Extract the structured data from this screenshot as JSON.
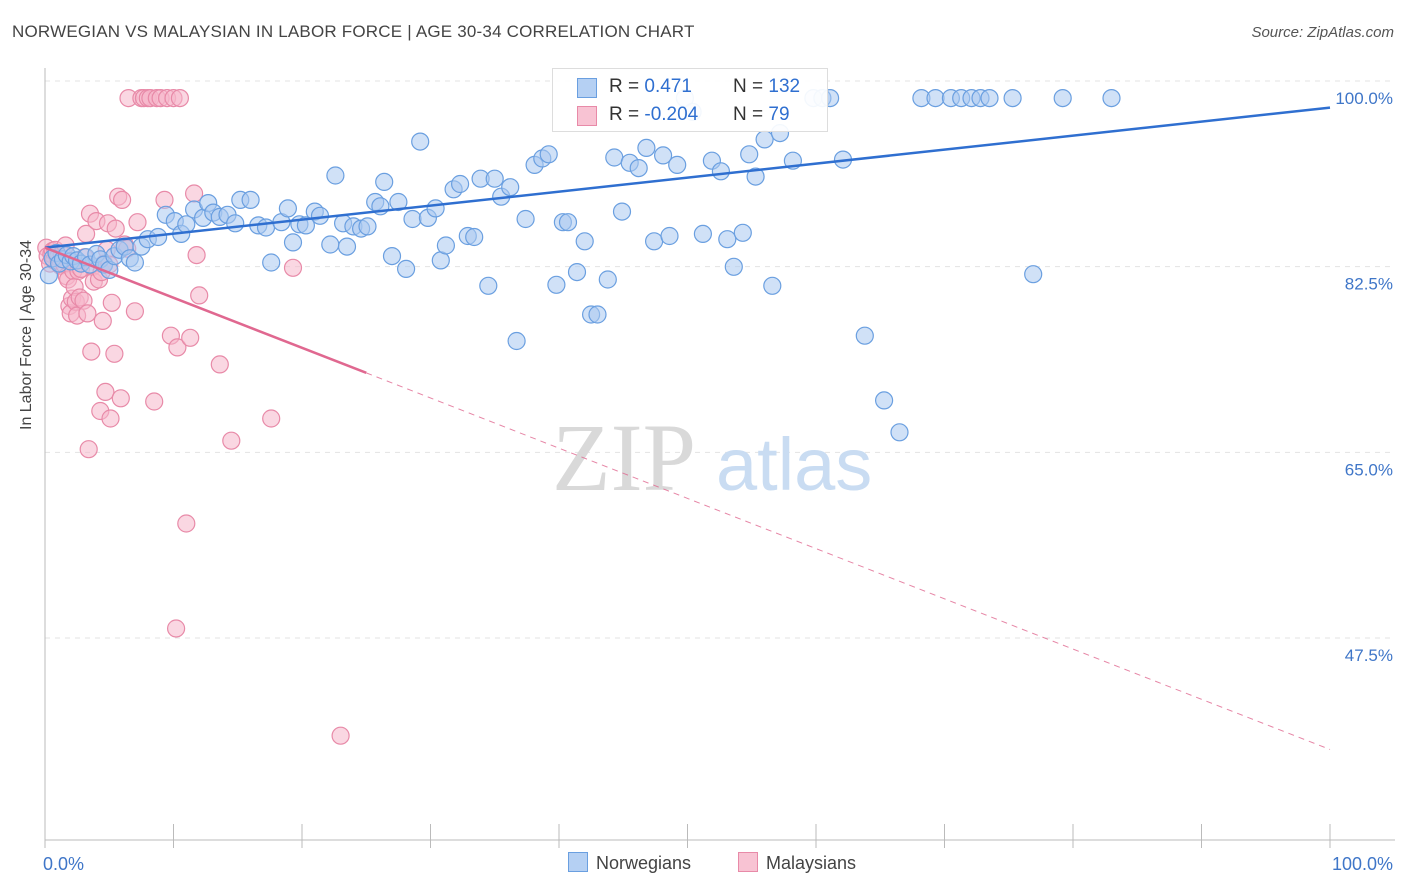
{
  "title": "NORWEGIAN VS MALAYSIAN IN LABOR FORCE | AGE 30-34 CORRELATION CHART",
  "source": "Source: ZipAtlas.com",
  "watermark": {
    "zip": "ZIP",
    "atlas": "atlas"
  },
  "legend": {
    "rows": [
      {
        "r_label": "R = ",
        "r_value": " 0.471",
        "n_label": "N = ",
        "n_value": "132"
      },
      {
        "r_label": "R = ",
        "r_value": "-0.204",
        "n_label": "N = ",
        "n_value": " 79"
      }
    ]
  },
  "colors": {
    "norwegian_fill": "#a9c8f0",
    "norwegian_stroke": "#6a9fe0",
    "norwegian_line": "#2f6fd0",
    "malaysian_fill": "#f6b6cb",
    "malaysian_stroke": "#e88aa8",
    "malaysian_line": "#e06890",
    "axis_label": "#3f76c8",
    "grid": "#e3e3e3"
  },
  "chart_data": {
    "type": "scatter",
    "title": "NORWEGIAN VS MALAYSIAN IN LABOR FORCE | AGE 30-34 CORRELATION CHART",
    "xlabel": "",
    "ylabel": "In Labor Force | Age 30-34",
    "xlim": [
      0,
      100
    ],
    "ylim": [
      33,
      101.5
    ],
    "x_tick_labels": [
      "0.0%",
      "100.0%"
    ],
    "y_ticks": [
      100,
      82.5,
      65,
      47.5
    ],
    "y_tick_labels": [
      "100.0%",
      "82.5%",
      "65.0%",
      "47.5%"
    ],
    "grid": true,
    "legend_position": "bottom",
    "series": [
      {
        "name": "Norwegians",
        "r": 0.471,
        "n": 132,
        "trend": {
          "x": [
            0,
            100
          ],
          "y": [
            85.8,
            99.0
          ],
          "style": "solid"
        },
        "points": [
          [
            0.3,
            83.2
          ],
          [
            0.6,
            84.8
          ],
          [
            0.9,
            85.3
          ],
          [
            1.1,
            84.3
          ],
          [
            1.4,
            84.7
          ],
          [
            1.7,
            85.1
          ],
          [
            2.0,
            84.5
          ],
          [
            2.2,
            85.0
          ],
          [
            2.5,
            84.6
          ],
          [
            2.8,
            84.3
          ],
          [
            3.2,
            84.9
          ],
          [
            3.5,
            84.2
          ],
          [
            4.0,
            85.2
          ],
          [
            4.3,
            84.7
          ],
          [
            4.6,
            84.2
          ],
          [
            5.0,
            83.7
          ],
          [
            5.4,
            85.0
          ],
          [
            5.8,
            85.6
          ],
          [
            6.2,
            85.9
          ],
          [
            6.6,
            84.8
          ],
          [
            7.0,
            84.4
          ],
          [
            7.5,
            85.9
          ],
          [
            8.0,
            86.6
          ],
          [
            8.8,
            86.8
          ],
          [
            9.4,
            88.9
          ],
          [
            10.1,
            88.3
          ],
          [
            10.6,
            87.1
          ],
          [
            11.0,
            88.0
          ],
          [
            11.6,
            89.4
          ],
          [
            12.3,
            88.6
          ],
          [
            12.7,
            90.0
          ],
          [
            13.1,
            89.1
          ],
          [
            13.6,
            88.7
          ],
          [
            14.2,
            88.9
          ],
          [
            14.8,
            88.1
          ],
          [
            15.2,
            90.3
          ],
          [
            16.0,
            90.3
          ],
          [
            16.6,
            87.9
          ],
          [
            17.2,
            87.7
          ],
          [
            17.6,
            84.4
          ],
          [
            18.4,
            88.2
          ],
          [
            18.9,
            89.5
          ],
          [
            19.3,
            86.3
          ],
          [
            19.8,
            88.0
          ],
          [
            20.3,
            87.9
          ],
          [
            21.0,
            89.2
          ],
          [
            21.4,
            88.8
          ],
          [
            22.2,
            86.1
          ],
          [
            22.6,
            92.6
          ],
          [
            23.2,
            88.1
          ],
          [
            23.5,
            85.9
          ],
          [
            24.0,
            87.8
          ],
          [
            24.6,
            87.6
          ],
          [
            25.1,
            87.8
          ],
          [
            25.7,
            90.1
          ],
          [
            26.1,
            89.7
          ],
          [
            26.4,
            92.0
          ],
          [
            27.0,
            85.0
          ],
          [
            27.5,
            90.1
          ],
          [
            28.1,
            83.8
          ],
          [
            28.6,
            88.5
          ],
          [
            29.2,
            95.8
          ],
          [
            29.8,
            88.6
          ],
          [
            30.4,
            89.5
          ],
          [
            30.8,
            84.6
          ],
          [
            31.2,
            86.0
          ],
          [
            31.8,
            91.3
          ],
          [
            32.3,
            91.8
          ],
          [
            32.9,
            86.9
          ],
          [
            33.4,
            86.8
          ],
          [
            33.9,
            92.3
          ],
          [
            34.5,
            82.2
          ],
          [
            35.0,
            92.3
          ],
          [
            35.5,
            90.6
          ],
          [
            36.2,
            91.5
          ],
          [
            36.7,
            77.0
          ],
          [
            37.4,
            88.5
          ],
          [
            38.1,
            93.6
          ],
          [
            38.7,
            94.2
          ],
          [
            39.2,
            94.6
          ],
          [
            39.8,
            82.3
          ],
          [
            40.3,
            88.2
          ],
          [
            40.7,
            88.2
          ],
          [
            41.4,
            83.5
          ],
          [
            42.0,
            86.4
          ],
          [
            42.5,
            79.5
          ],
          [
            43.0,
            79.5
          ],
          [
            43.8,
            82.8
          ],
          [
            44.3,
            94.3
          ],
          [
            44.9,
            89.2
          ],
          [
            45.5,
            93.8
          ],
          [
            46.2,
            93.3
          ],
          [
            46.8,
            95.2
          ],
          [
            47.4,
            86.4
          ],
          [
            48.1,
            94.5
          ],
          [
            48.6,
            86.9
          ],
          [
            49.2,
            93.6
          ],
          [
            49.8,
            99.9
          ],
          [
            50.4,
            98.6
          ],
          [
            51.2,
            87.1
          ],
          [
            51.9,
            94.0
          ],
          [
            52.6,
            93.0
          ],
          [
            53.1,
            86.6
          ],
          [
            53.6,
            84.0
          ],
          [
            54.3,
            87.2
          ],
          [
            54.8,
            94.6
          ],
          [
            55.3,
            92.5
          ],
          [
            56.0,
            96.0
          ],
          [
            56.6,
            82.2
          ],
          [
            57.2,
            96.6
          ],
          [
            58.2,
            94.0
          ],
          [
            59.8,
            99.9
          ],
          [
            60.5,
            99.9
          ],
          [
            61.1,
            99.9
          ],
          [
            62.1,
            94.1
          ],
          [
            63.8,
            77.5
          ],
          [
            65.3,
            71.4
          ],
          [
            66.5,
            68.4
          ],
          [
            68.2,
            99.9
          ],
          [
            69.3,
            99.9
          ],
          [
            70.5,
            99.9
          ],
          [
            71.3,
            99.9
          ],
          [
            72.1,
            99.9
          ],
          [
            72.8,
            99.9
          ],
          [
            73.5,
            99.9
          ],
          [
            75.3,
            99.9
          ],
          [
            76.9,
            83.3
          ],
          [
            79.2,
            99.9
          ],
          [
            83.0,
            99.9
          ]
        ]
      },
      {
        "name": "Malaysians",
        "r": -0.204,
        "n": 79,
        "trend": {
          "x": [
            0,
            25,
            100
          ],
          "y": [
            85.8,
            74.0,
            38.5
          ],
          "style": "solid-then-dashed",
          "solid_until_x": 25
        },
        "points": [
          [
            0.1,
            85.8
          ],
          [
            0.2,
            85.0
          ],
          [
            0.4,
            84.3
          ],
          [
            0.5,
            85.2
          ],
          [
            0.6,
            85.5
          ],
          [
            0.7,
            84.6
          ],
          [
            0.8,
            85.6
          ],
          [
            1.0,
            84.9
          ],
          [
            1.2,
            84.1
          ],
          [
            1.3,
            85.2
          ],
          [
            1.5,
            84.2
          ],
          [
            1.6,
            86.0
          ],
          [
            1.7,
            83.1
          ],
          [
            1.8,
            82.8
          ],
          [
            1.9,
            80.3
          ],
          [
            2.0,
            79.6
          ],
          [
            2.1,
            81.0
          ],
          [
            2.2,
            83.6
          ],
          [
            2.3,
            82.1
          ],
          [
            2.4,
            80.7
          ],
          [
            2.5,
            79.4
          ],
          [
            2.6,
            83.6
          ],
          [
            2.7,
            81.1
          ],
          [
            2.8,
            83.8
          ],
          [
            3.0,
            80.8
          ],
          [
            3.1,
            84.9
          ],
          [
            3.2,
            87.1
          ],
          [
            3.3,
            79.6
          ],
          [
            3.4,
            66.8
          ],
          [
            3.5,
            89.0
          ],
          [
            3.6,
            76.0
          ],
          [
            3.7,
            84.0
          ],
          [
            3.8,
            82.6
          ],
          [
            4.0,
            88.3
          ],
          [
            4.2,
            82.8
          ],
          [
            4.3,
            70.4
          ],
          [
            4.4,
            83.5
          ],
          [
            4.5,
            78.9
          ],
          [
            4.6,
            84.3
          ],
          [
            4.7,
            72.2
          ],
          [
            4.8,
            85.6
          ],
          [
            4.9,
            88.1
          ],
          [
            5.0,
            84.2
          ],
          [
            5.1,
            69.7
          ],
          [
            5.2,
            80.6
          ],
          [
            5.4,
            75.8
          ],
          [
            5.5,
            87.6
          ],
          [
            5.7,
            90.6
          ],
          [
            5.9,
            71.6
          ],
          [
            6.0,
            90.3
          ],
          [
            6.2,
            86.1
          ],
          [
            6.4,
            85.7
          ],
          [
            6.5,
            99.9
          ],
          [
            7.0,
            79.8
          ],
          [
            7.2,
            88.2
          ],
          [
            7.5,
            99.9
          ],
          [
            7.7,
            99.9
          ],
          [
            8.0,
            99.9
          ],
          [
            8.2,
            99.9
          ],
          [
            8.5,
            71.3
          ],
          [
            8.7,
            99.9
          ],
          [
            9.0,
            99.9
          ],
          [
            9.3,
            90.3
          ],
          [
            9.5,
            99.9
          ],
          [
            9.8,
            77.5
          ],
          [
            10.0,
            99.9
          ],
          [
            10.3,
            76.4
          ],
          [
            10.5,
            99.9
          ],
          [
            11.0,
            59.8
          ],
          [
            11.3,
            77.3
          ],
          [
            11.6,
            90.9
          ],
          [
            11.8,
            85.1
          ],
          [
            12.0,
            81.3
          ],
          [
            13.6,
            74.8
          ],
          [
            14.5,
            67.6
          ],
          [
            17.6,
            69.7
          ],
          [
            19.3,
            83.9
          ],
          [
            23.0,
            39.8
          ],
          [
            10.2,
            49.9
          ]
        ]
      }
    ]
  },
  "x_axis": {
    "left_label": "0.0%",
    "right_label": "100.0%"
  },
  "bottom_legend": {
    "norwegians": "Norwegians",
    "malaysians": "Malaysians"
  }
}
